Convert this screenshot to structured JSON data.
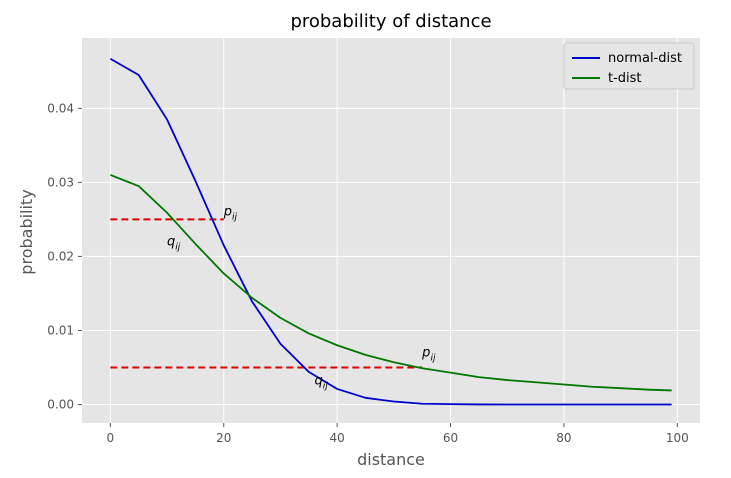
{
  "chart_data": {
    "type": "line",
    "title": "probability of distance",
    "xlabel": "distance",
    "ylabel": "probability",
    "xlim": [
      -5,
      104
    ],
    "ylim": [
      -0.0025,
      0.0495
    ],
    "xticks": [
      0,
      20,
      40,
      60,
      80,
      100
    ],
    "yticks": [
      0.0,
      0.01,
      0.02,
      0.03,
      0.04
    ],
    "ytick_labels": [
      "0.00",
      "0.01",
      "0.02",
      "0.03",
      "0.04"
    ],
    "grid": true,
    "background": "#e5e5e5",
    "legend_position": "top-right",
    "series": [
      {
        "name": "normal-dist",
        "color": "#0000cc",
        "x": [
          0,
          5,
          10,
          15,
          20,
          25,
          30,
          35,
          40,
          45,
          50,
          55,
          60,
          65,
          70,
          75,
          80,
          85,
          90,
          95,
          99
        ],
        "y": [
          0.0467,
          0.0445,
          0.0385,
          0.0302,
          0.0215,
          0.0139,
          0.0082,
          0.0044,
          0.0021,
          0.0009,
          0.0004,
          0.0001,
          5e-05,
          1e-05,
          0,
          0,
          0,
          0,
          0,
          0,
          0
        ]
      },
      {
        "name": "t-dist",
        "color": "#007700",
        "x": [
          0,
          5,
          10,
          15,
          20,
          25,
          30,
          35,
          40,
          45,
          50,
          55,
          60,
          65,
          70,
          75,
          80,
          85,
          90,
          95,
          99
        ],
        "y": [
          0.031,
          0.0295,
          0.0259,
          0.0217,
          0.0177,
          0.0144,
          0.0117,
          0.0096,
          0.008,
          0.0067,
          0.0057,
          0.0049,
          0.0043,
          0.0037,
          0.0033,
          0.003,
          0.0027,
          0.0024,
          0.0022,
          0.002,
          0.0019
        ]
      }
    ],
    "reference_lines": [
      {
        "x": [
          0,
          20
        ],
        "y": 0.025,
        "color": "#dd0000",
        "style": "dashed"
      },
      {
        "x": [
          0,
          55
        ],
        "y": 0.005,
        "color": "#dd0000",
        "style": "dashed"
      }
    ],
    "annotations": [
      {
        "base": "p",
        "sub": "ij",
        "x": 20,
        "y": 0.0255
      },
      {
        "base": "q",
        "sub": "ij",
        "x": 10,
        "y": 0.0215
      },
      {
        "base": "p",
        "sub": "ij",
        "x": 55,
        "y": 0.0065
      },
      {
        "base": "q",
        "sub": "ij",
        "x": 36,
        "y": 0.0027
      }
    ]
  }
}
